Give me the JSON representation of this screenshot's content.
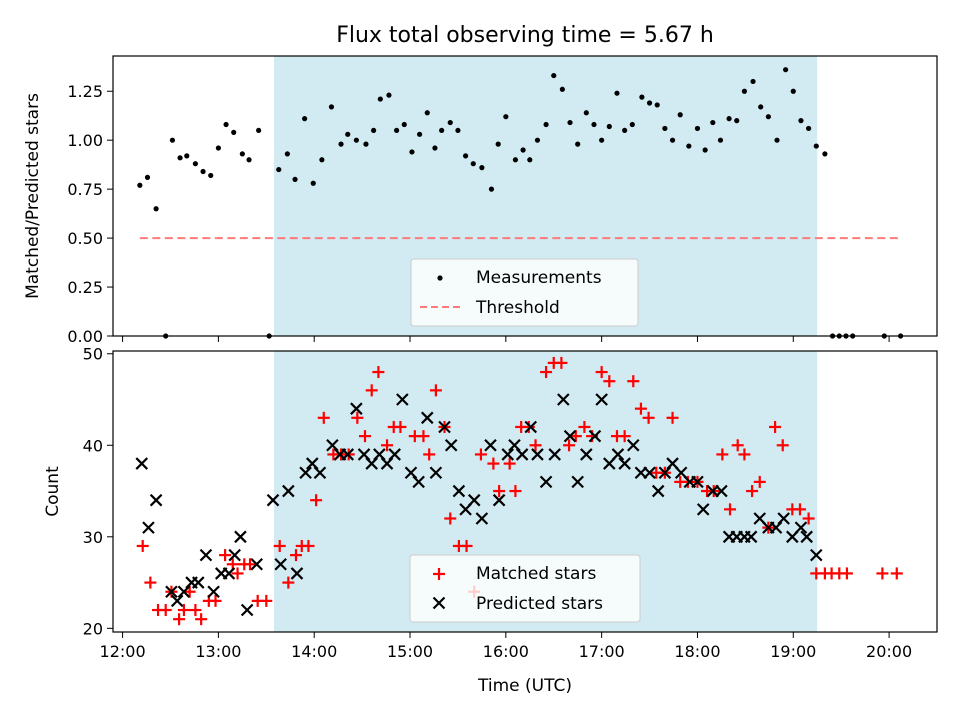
{
  "title": "Flux total observing time = 5.67 h",
  "colors": {
    "shade": "#add8e6",
    "measurement": "#000000",
    "threshold": "#ff7b7b",
    "matched": "#ff0000",
    "predicted": "#000000"
  },
  "chart_data": [
    {
      "type": "scatter",
      "panel": "top",
      "ylabel": "Matched/Predicted stars",
      "ylim": [
        0,
        1.43
      ],
      "yticks": [
        "0.00",
        "0.25",
        "0.50",
        "0.75",
        "1.00",
        "1.25"
      ],
      "xlim": [
        11.9,
        20.5
      ],
      "shaded_region": [
        13.58,
        19.25
      ],
      "threshold": {
        "x": [
          12.18,
          20.1
        ],
        "y": 0.5
      },
      "legend": [
        "Measurements",
        "Threshold"
      ],
      "legend_position": "lower-center",
      "series": [
        {
          "name": "Measurements",
          "marker": "dot",
          "x": [
            12.18,
            12.26,
            12.35,
            12.45,
            12.52,
            12.6,
            12.67,
            12.76,
            12.84,
            12.92,
            13.0,
            13.08,
            13.16,
            13.25,
            13.32,
            13.42,
            13.53,
            13.63,
            13.72,
            13.8,
            13.9,
            13.99,
            14.08,
            14.18,
            14.28,
            14.35,
            14.44,
            14.54,
            14.62,
            14.69,
            14.78,
            14.86,
            14.94,
            15.02,
            15.1,
            15.18,
            15.26,
            15.33,
            15.42,
            15.5,
            15.58,
            15.66,
            15.75,
            15.85,
            15.92,
            16.0,
            16.1,
            16.18,
            16.25,
            16.33,
            16.42,
            16.5,
            16.59,
            16.67,
            16.75,
            16.84,
            16.92,
            17.0,
            17.08,
            17.16,
            17.24,
            17.32,
            17.42,
            17.5,
            17.58,
            17.66,
            17.74,
            17.82,
            17.91,
            18.0,
            18.08,
            18.16,
            18.24,
            18.33,
            18.41,
            18.49,
            18.58,
            18.66,
            18.74,
            18.83,
            18.92,
            19.0,
            19.08,
            19.16,
            19.24,
            19.33,
            19.41,
            19.48,
            19.55,
            19.62,
            19.95,
            20.12
          ],
          "y": [
            0.77,
            0.81,
            0.65,
            0.0,
            1.0,
            0.91,
            0.92,
            0.88,
            0.84,
            0.82,
            0.96,
            1.08,
            1.04,
            0.93,
            0.9,
            1.05,
            0.0,
            0.85,
            0.93,
            0.8,
            1.11,
            0.78,
            0.9,
            1.17,
            0.98,
            1.03,
            1.0,
            0.98,
            1.05,
            1.21,
            1.23,
            1.05,
            1.08,
            0.94,
            1.03,
            1.14,
            0.96,
            1.05,
            1.09,
            1.05,
            0.92,
            0.88,
            0.86,
            0.75,
            0.98,
            1.12,
            0.9,
            0.95,
            0.9,
            1.0,
            1.08,
            1.33,
            1.26,
            1.09,
            0.98,
            1.14,
            1.08,
            1.0,
            1.07,
            1.24,
            1.05,
            1.08,
            1.22,
            1.19,
            1.18,
            1.06,
            1.0,
            1.13,
            0.97,
            1.06,
            0.95,
            1.09,
            1.0,
            1.11,
            1.1,
            1.25,
            1.3,
            1.17,
            1.12,
            1.0,
            1.36,
            1.25,
            1.1,
            1.06,
            0.97,
            0.93,
            0.0,
            0.0,
            0.0,
            0.0,
            0.0,
            0.0
          ]
        }
      ]
    },
    {
      "type": "scatter",
      "panel": "bottom",
      "ylabel": "Count",
      "xlabel": "Time (UTC)",
      "ylim": [
        19.6,
        50.3
      ],
      "yticks": [
        "20",
        "30",
        "40",
        "50"
      ],
      "xticks": [
        "12:00",
        "13:00",
        "14:00",
        "15:00",
        "16:00",
        "17:00",
        "18:00",
        "19:00",
        "20:00"
      ],
      "xtick_values": [
        12,
        13,
        14,
        15,
        16,
        17,
        18,
        19,
        20
      ],
      "xlim": [
        11.9,
        20.5
      ],
      "shaded_region": [
        13.58,
        19.25
      ],
      "legend": [
        "Matched stars",
        "Predicted stars"
      ],
      "legend_position": "lower-center",
      "series": [
        {
          "name": "Matched stars",
          "marker": "plus",
          "x": [
            12.21,
            12.29,
            12.37,
            12.45,
            12.51,
            12.59,
            12.64,
            12.7,
            12.76,
            12.82,
            12.9,
            12.97,
            13.07,
            13.15,
            13.2,
            13.27,
            13.33,
            13.41,
            13.5,
            13.64,
            13.73,
            13.81,
            13.87,
            13.94,
            14.02,
            14.1,
            14.2,
            14.28,
            14.36,
            14.45,
            14.53,
            14.6,
            14.67,
            14.76,
            14.83,
            14.9,
            15.05,
            15.14,
            15.2,
            15.27,
            15.36,
            15.42,
            15.51,
            15.59,
            15.67,
            15.74,
            15.87,
            15.93,
            16.04,
            16.1,
            16.16,
            16.24,
            16.31,
            16.42,
            16.5,
            16.58,
            16.66,
            16.73,
            16.82,
            16.9,
            17.0,
            17.08,
            17.16,
            17.24,
            17.33,
            17.41,
            17.49,
            17.57,
            17.66,
            17.74,
            17.82,
            17.9,
            18.0,
            18.1,
            18.17,
            18.26,
            18.34,
            18.42,
            18.49,
            18.57,
            18.65,
            18.74,
            18.81,
            18.89,
            18.99,
            19.07,
            19.16,
            19.24,
            19.33,
            19.4,
            19.48,
            19.56,
            19.93,
            20.08
          ],
          "y": [
            29,
            25,
            22,
            22,
            24,
            21,
            22,
            24,
            22,
            21,
            23,
            23,
            28,
            27,
            26,
            27,
            27,
            23,
            23,
            29,
            25,
            28,
            29,
            29,
            34,
            43,
            39,
            39,
            39,
            43,
            41,
            46,
            48,
            40,
            42,
            42,
            41,
            41,
            39,
            46,
            42,
            32,
            29,
            29,
            24,
            39,
            38,
            35,
            38,
            35,
            42,
            42,
            40,
            48,
            49,
            49,
            40,
            41,
            42,
            41,
            48,
            47,
            41,
            41,
            47,
            44,
            43,
            37,
            37,
            43,
            36,
            36,
            36,
            35,
            35,
            39,
            33,
            40,
            39,
            35,
            36,
            31,
            42,
            40,
            33,
            33,
            32,
            26,
            26,
            26,
            26,
            26,
            26,
            26
          ]
        },
        {
          "name": "Predicted stars",
          "marker": "x",
          "x": [
            12.2,
            12.27,
            12.35,
            12.51,
            12.57,
            12.64,
            12.72,
            12.79,
            12.87,
            12.95,
            13.03,
            13.11,
            13.17,
            13.23,
            13.3,
            13.4,
            13.57,
            13.65,
            13.73,
            13.82,
            13.91,
            13.98,
            14.06,
            14.19,
            14.27,
            14.35,
            14.44,
            14.52,
            14.6,
            14.68,
            14.76,
            14.84,
            14.92,
            15.01,
            15.09,
            15.18,
            15.27,
            15.36,
            15.43,
            15.51,
            15.58,
            15.67,
            15.75,
            15.84,
            15.93,
            16.02,
            16.09,
            16.17,
            16.26,
            16.33,
            16.42,
            16.51,
            16.6,
            16.67,
            16.75,
            16.84,
            16.93,
            17.0,
            17.08,
            17.17,
            17.24,
            17.33,
            17.41,
            17.5,
            17.59,
            17.66,
            17.74,
            17.83,
            17.92,
            18.0,
            18.06,
            18.16,
            18.25,
            18.33,
            18.41,
            18.49,
            18.56,
            18.65,
            18.74,
            18.82,
            18.9,
            18.99,
            19.08,
            19.14,
            19.24
          ],
          "y": [
            38,
            31,
            34,
            24,
            23,
            24,
            25,
            25,
            28,
            24,
            26,
            26,
            28,
            30,
            22,
            27,
            34,
            27,
            35,
            26,
            37,
            38,
            37,
            40,
            39,
            39,
            44,
            39,
            38,
            39,
            38,
            39,
            45,
            37,
            36,
            43,
            37,
            42,
            40,
            35,
            33,
            34,
            32,
            40,
            34,
            39,
            40,
            39,
            42,
            39,
            36,
            39,
            45,
            41,
            36,
            39,
            41,
            45,
            38,
            39,
            38,
            40,
            37,
            37,
            35,
            37,
            38,
            37,
            36,
            36,
            33,
            35,
            35,
            30,
            30,
            30,
            30,
            32,
            31,
            31,
            32,
            30,
            31,
            30,
            28
          ]
        }
      ]
    }
  ]
}
